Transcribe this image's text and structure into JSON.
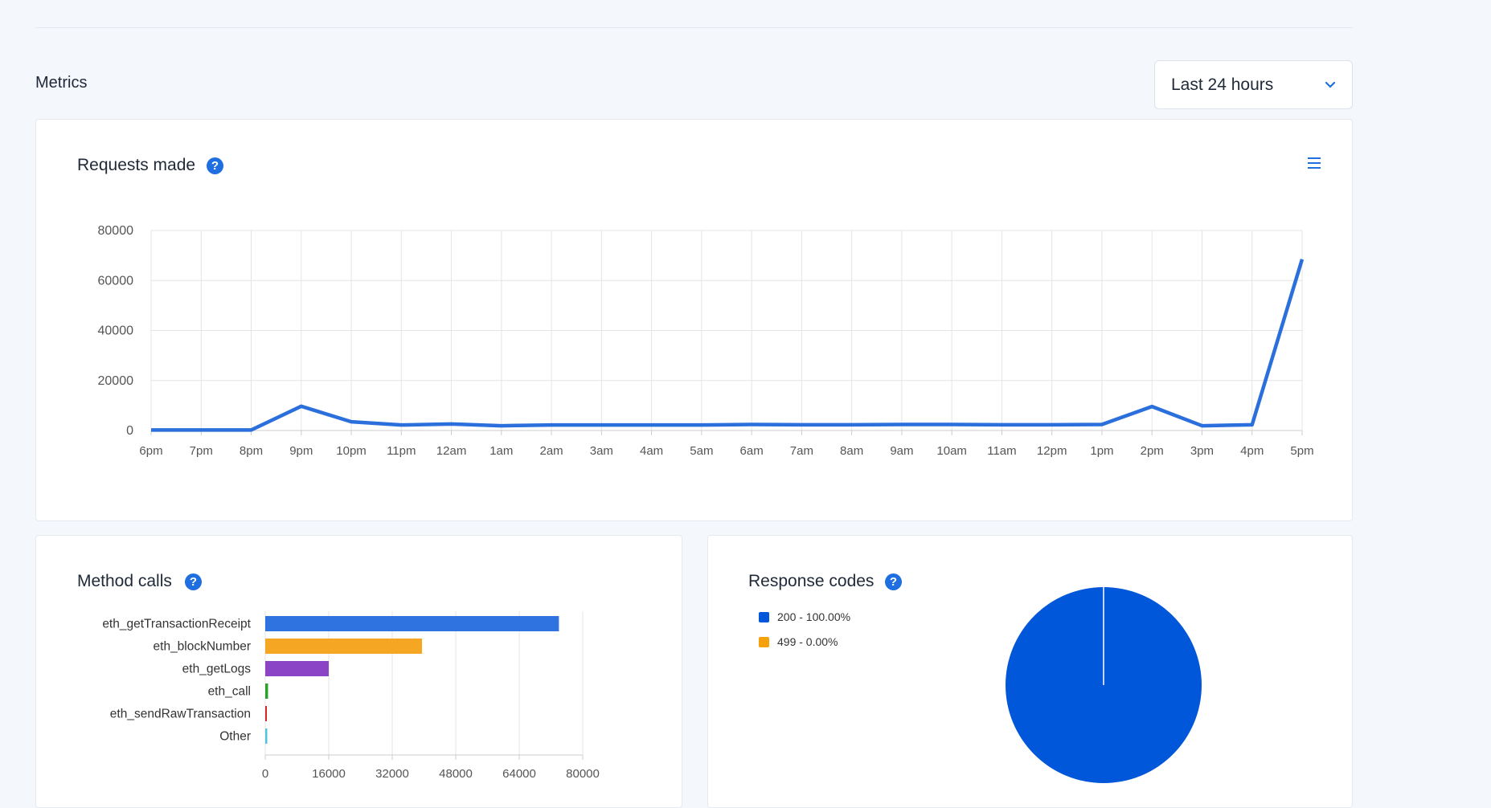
{
  "page": {
    "section_title": "Metrics"
  },
  "range_select": {
    "value": "Last 24 hours"
  },
  "colors": {
    "accent": "#1f6fe0",
    "line": "#2a6fdb"
  },
  "requests_card": {
    "title": "Requests made"
  },
  "method_card": {
    "title": "Method calls"
  },
  "response_card": {
    "title": "Response codes"
  },
  "chart_data": [
    {
      "type": "line",
      "title": "Requests made",
      "x": [
        "6pm",
        "7pm",
        "8pm",
        "9pm",
        "10pm",
        "11pm",
        "12am",
        "1am",
        "2am",
        "3am",
        "4am",
        "5am",
        "6am",
        "7am",
        "8am",
        "9am",
        "10am",
        "11am",
        "12pm",
        "1pm",
        "2pm",
        "3pm",
        "4pm",
        "5pm"
      ],
      "values": [
        200,
        200,
        200,
        9700,
        3500,
        2200,
        2600,
        1900,
        2200,
        2200,
        2200,
        2200,
        2400,
        2300,
        2300,
        2400,
        2400,
        2300,
        2300,
        2400,
        9600,
        1900,
        2300,
        68500
      ],
      "y_ticks": [
        0,
        20000,
        40000,
        60000,
        80000
      ],
      "ylim": [
        0,
        80000
      ],
      "grid": true,
      "color": "#2a6fdb"
    },
    {
      "type": "bar",
      "orientation": "horizontal",
      "title": "Method calls",
      "categories": [
        "eth_getTransactionReceipt",
        "eth_blockNumber",
        "eth_getLogs",
        "eth_call",
        "eth_sendRawTransaction",
        "Other"
      ],
      "values": [
        74000,
        39500,
        16000,
        700,
        250,
        500
      ],
      "colors": [
        "#2f73e0",
        "#f5a623",
        "#8b44c6",
        "#2ca02c",
        "#d62728",
        "#4fc3d9"
      ],
      "x_ticks": [
        0,
        16000,
        32000,
        48000,
        64000,
        80000
      ],
      "xlim": [
        0,
        80000
      ],
      "grid": true
    },
    {
      "type": "pie",
      "title": "Response codes",
      "labels": [
        "200 - 100.00%",
        "499 - 0.00%"
      ],
      "values": [
        100.0,
        0.0
      ],
      "colors": [
        "#0057d9",
        "#f5a10c"
      ],
      "legend": "top-left"
    }
  ]
}
